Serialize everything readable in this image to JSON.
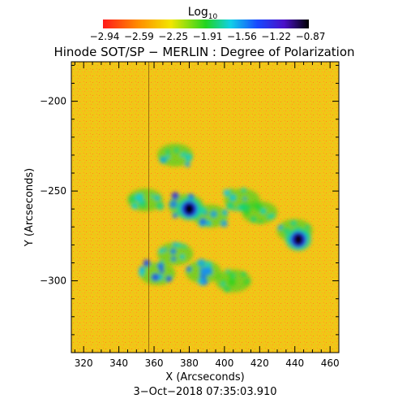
{
  "colorbar": {
    "label_base": "Log",
    "label_sub": "10",
    "ticks": [
      "−2.94",
      "−2.59",
      "−2.25",
      "−1.91",
      "−1.56",
      "−1.22",
      "−0.87"
    ],
    "min": -2.94,
    "max": -0.87
  },
  "chart_data": {
    "type": "heatmap",
    "title": "Hinode SOT/SP − MERLIN : Degree of Polarization",
    "xlabel": "X (Arcseconds)",
    "ylabel": "Y (Arcseconds)",
    "xlim": [
      313,
      465
    ],
    "ylim": [
      -340,
      -178
    ],
    "xticks": [
      {
        "value": 320,
        "label": "320"
      },
      {
        "value": 340,
        "label": "340"
      },
      {
        "value": 360,
        "label": "360"
      },
      {
        "value": 380,
        "label": "380"
      },
      {
        "value": 400,
        "label": "400"
      },
      {
        "value": 420,
        "label": "420"
      },
      {
        "value": 440,
        "label": "440"
      },
      {
        "value": 460,
        "label": "460"
      }
    ],
    "yticks": [
      {
        "value": -200,
        "label": "−200"
      },
      {
        "value": -250,
        "label": "−250"
      },
      {
        "value": -300,
        "label": "−300"
      }
    ],
    "background_level": -2.4,
    "features": [
      {
        "kind": "sunspot",
        "x": 380,
        "y": -260,
        "level": -0.87
      },
      {
        "kind": "sunspot",
        "x": 442,
        "y": -277,
        "level": -0.9
      },
      {
        "kind": "plage",
        "x": 378,
        "y": -258,
        "level": -1.4
      },
      {
        "kind": "plage",
        "x": 392,
        "y": -264,
        "level": -1.6
      },
      {
        "kind": "plage",
        "x": 410,
        "y": -255,
        "level": -1.7
      },
      {
        "kind": "plage",
        "x": 372,
        "y": -285,
        "level": -1.6
      },
      {
        "kind": "plage",
        "x": 388,
        "y": -295,
        "level": -1.6
      },
      {
        "kind": "plage",
        "x": 405,
        "y": -300,
        "level": -1.8
      },
      {
        "kind": "plage",
        "x": 372,
        "y": -230,
        "level": -1.7
      },
      {
        "kind": "plage",
        "x": 440,
        "y": -272,
        "level": -1.7
      },
      {
        "kind": "plage",
        "x": 362,
        "y": -296,
        "level": -1.5
      },
      {
        "kind": "plage",
        "x": 420,
        "y": -262,
        "level": -1.8
      },
      {
        "kind": "plage",
        "x": 355,
        "y": -255,
        "level": -1.7
      }
    ],
    "artifact_column_x": 357
  },
  "timestamp": "3−Oct−2018 07:35:03.910"
}
